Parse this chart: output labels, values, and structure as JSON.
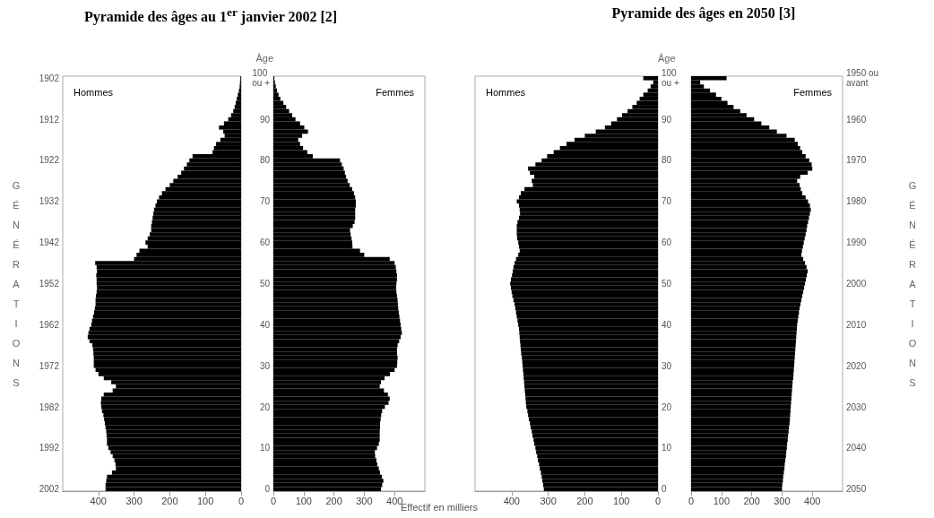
{
  "chart_data": [
    {
      "type": "bar",
      "title": "Pyramide des âges au 1$^{er}$ janvier 2002 [2]",
      "ylabel": "GÉNÉRATIONS",
      "orientation": "horizontal",
      "categories": [
        "1902",
        null,
        null,
        null,
        null,
        null,
        null,
        null,
        null,
        null,
        "1912",
        null,
        null,
        null,
        null,
        null,
        null,
        null,
        null,
        null,
        "1922",
        null,
        null,
        null,
        null,
        null,
        null,
        null,
        null,
        null,
        "1932",
        null,
        null,
        null,
        null,
        null,
        null,
        null,
        null,
        null,
        "1942",
        null,
        null,
        null,
        null,
        null,
        null,
        null,
        null,
        null,
        "1952",
        null,
        null,
        null,
        null,
        null,
        null,
        null,
        null,
        null,
        "1962",
        null,
        null,
        null,
        null,
        null,
        null,
        null,
        null,
        null,
        "1972",
        null,
        null,
        null,
        null,
        null,
        null,
        null,
        null,
        null,
        "1982",
        null,
        null,
        null,
        null,
        null,
        null,
        null,
        null,
        null,
        "1992",
        null,
        null,
        null,
        null,
        null,
        null,
        null,
        null,
        null,
        "2002"
      ],
      "series": [
        {
          "name": "Hommes",
          "color": "#000000",
          "values": [
            2,
            3,
            4,
            6,
            9,
            12,
            15,
            18,
            22,
            28,
            36,
            48,
            62,
            50,
            46,
            58,
            70,
            76,
            80,
            136,
            145,
            152,
            160,
            168,
            178,
            190,
            200,
            212,
            222,
            230,
            236,
            240,
            244,
            246,
            248,
            250,
            252,
            252,
            256,
            262,
            268,
            262,
            285,
            293,
            300,
            409,
            405,
            404,
            406,
            405,
            405,
            404,
            405,
            407,
            408,
            408,
            410,
            412,
            415,
            418,
            420,
            425,
            428,
            430,
            425,
            417,
            415,
            414,
            413,
            413,
            413,
            408,
            400,
            385,
            364,
            351,
            360,
            385,
            392,
            393,
            392,
            390,
            386,
            384,
            382,
            380,
            378,
            377,
            376,
            376,
            372,
            366,
            360,
            355,
            352,
            351,
            362,
            376,
            378,
            380,
            380
          ]
        }
      ],
      "xlim": [
        500,
        0
      ],
      "xticks": [
        400,
        300,
        200,
        100,
        0
      ]
    },
    {
      "type": "bar",
      "ylabel": "Âge",
      "xlabel": "Effectif en milliers",
      "orientation": "horizontal",
      "categories": [
        "100 ou +",
        null,
        null,
        null,
        null,
        null,
        null,
        null,
        null,
        null,
        "90",
        null,
        null,
        null,
        null,
        null,
        null,
        null,
        null,
        null,
        "80",
        null,
        null,
        null,
        null,
        null,
        null,
        null,
        null,
        null,
        "70",
        null,
        null,
        null,
        null,
        null,
        null,
        null,
        null,
        null,
        "60",
        null,
        null,
        null,
        null,
        null,
        null,
        null,
        null,
        null,
        "50",
        null,
        null,
        null,
        null,
        null,
        null,
        null,
        null,
        null,
        "40",
        null,
        null,
        null,
        null,
        null,
        null,
        null,
        null,
        null,
        "30",
        null,
        null,
        null,
        null,
        null,
        null,
        null,
        null,
        null,
        "20",
        null,
        null,
        null,
        null,
        null,
        null,
        null,
        null,
        null,
        "10",
        null,
        null,
        null,
        null,
        null,
        null,
        null,
        null,
        null,
        "0"
      ],
      "series": [
        {
          "name": "Femmes",
          "color": "#000000",
          "values": [
            3,
            5,
            8,
            12,
            17,
            23,
            33,
            42,
            52,
            62,
            73,
            88,
            102,
            114,
            95,
            82,
            88,
            98,
            112,
            130,
            220,
            226,
            232,
            236,
            240,
            245,
            252,
            260,
            266,
            270,
            272,
            272,
            270,
            270,
            270,
            268,
            262,
            253,
            255,
            258,
            260,
            261,
            286,
            300,
            384,
            400,
            404,
            406,
            408,
            408,
            406,
            405,
            406,
            408,
            410,
            411,
            412,
            414,
            416,
            418,
            420,
            422,
            424,
            420,
            415,
            410,
            408,
            408,
            410,
            409,
            408,
            400,
            385,
            367,
            355,
            351,
            365,
            378,
            384,
            380,
            368,
            359,
            356,
            354,
            352,
            352,
            351,
            351,
            351,
            348,
            342,
            335,
            336,
            340,
            343,
            348,
            352,
            358,
            363,
            359,
            355
          ]
        }
      ],
      "xlim": [
        0,
        500
      ],
      "xticks": [
        0,
        100,
        200,
        300,
        400
      ]
    },
    {
      "type": "bar",
      "title": "Pyramide des âges en 2050 [3]",
      "ylabel": "Âge",
      "orientation": "horizontal",
      "categories": [
        "100 ou +",
        null,
        null,
        null,
        null,
        null,
        null,
        null,
        null,
        null,
        "90",
        null,
        null,
        null,
        null,
        null,
        null,
        null,
        null,
        null,
        "80",
        null,
        null,
        null,
        null,
        null,
        null,
        null,
        null,
        null,
        "70",
        null,
        null,
        null,
        null,
        null,
        null,
        null,
        null,
        null,
        "60",
        null,
        null,
        null,
        null,
        null,
        null,
        null,
        null,
        null,
        "50",
        null,
        null,
        null,
        null,
        null,
        null,
        null,
        null,
        null,
        "40",
        null,
        null,
        null,
        null,
        null,
        null,
        null,
        null,
        null,
        "30",
        null,
        null,
        null,
        null,
        null,
        null,
        null,
        null,
        null,
        "20",
        null,
        null,
        null,
        null,
        null,
        null,
        null,
        null,
        null,
        "10",
        null,
        null,
        null,
        null,
        null,
        null,
        null,
        null,
        null,
        "0"
      ],
      "series": [
        {
          "name": "Hommes",
          "color": "#000000",
          "values": [
            40,
            13,
            20,
            28,
            40,
            50,
            58,
            70,
            83,
            98,
            112,
            128,
            145,
            170,
            200,
            228,
            250,
            268,
            285,
            303,
            318,
            335,
            355,
            350,
            338,
            345,
            342,
            365,
            375,
            380,
            386,
            380,
            378,
            377,
            380,
            384,
            386,
            386,
            386,
            385,
            382,
            380,
            378,
            382,
            388,
            392,
            395,
            397,
            399,
            402,
            404,
            402,
            400,
            398,
            395,
            392,
            390,
            388,
            386,
            384,
            382,
            380,
            379,
            378,
            377,
            376,
            375,
            374,
            372,
            371,
            370,
            369,
            368,
            367,
            366,
            365,
            364,
            363,
            362,
            361,
            360,
            357,
            355,
            353,
            350,
            348,
            345,
            343,
            340,
            338,
            335,
            333,
            330,
            328,
            325,
            323,
            320,
            318,
            316,
            314,
            312
          ]
        }
      ],
      "xlim": [
        500,
        0
      ],
      "xticks": [
        400,
        300,
        200,
        100,
        0
      ]
    },
    {
      "type": "bar",
      "ylabel": "GÉNÉRATIONS",
      "orientation": "horizontal",
      "categories": [
        "1950 ou avant",
        null,
        null,
        null,
        null,
        null,
        null,
        null,
        null,
        null,
        "1960",
        null,
        null,
        null,
        null,
        null,
        null,
        null,
        null,
        null,
        "1970",
        null,
        null,
        null,
        null,
        null,
        null,
        null,
        null,
        null,
        "1980",
        null,
        null,
        null,
        null,
        null,
        null,
        null,
        null,
        null,
        "1990",
        null,
        null,
        null,
        null,
        null,
        null,
        null,
        null,
        null,
        "2000",
        null,
        null,
        null,
        null,
        null,
        null,
        null,
        null,
        null,
        "2010",
        null,
        null,
        null,
        null,
        null,
        null,
        null,
        null,
        null,
        "2020",
        null,
        null,
        null,
        null,
        null,
        null,
        null,
        null,
        null,
        "2030",
        null,
        null,
        null,
        null,
        null,
        null,
        null,
        null,
        null,
        "2040",
        null,
        null,
        null,
        null,
        null,
        null,
        null,
        null,
        null,
        "2050"
      ],
      "series": [
        {
          "name": "Femmes",
          "color": "#000000",
          "values": [
            117,
            30,
            42,
            62,
            82,
            100,
            120,
            140,
            162,
            183,
            208,
            232,
            258,
            283,
            315,
            342,
            352,
            360,
            367,
            378,
            390,
            398,
            400,
            385,
            360,
            350,
            358,
            362,
            367,
            378,
            386,
            392,
            395,
            392,
            389,
            386,
            383,
            381,
            378,
            375,
            372,
            369,
            366,
            364,
            370,
            376,
            381,
            385,
            382,
            379,
            376,
            373,
            370,
            367,
            364,
            361,
            358,
            356,
            354,
            352,
            350,
            349,
            348,
            347,
            346,
            345,
            344,
            343,
            342,
            341,
            340,
            339,
            338,
            337,
            335,
            334,
            333,
            332,
            331,
            330,
            329,
            328,
            327,
            326,
            325,
            323,
            322,
            320,
            319,
            317,
            316,
            314,
            313,
            311,
            309,
            308,
            306,
            304,
            303,
            301,
            300
          ]
        }
      ],
      "xlim": [
        0,
        500
      ],
      "xticks": [
        0,
        100,
        200,
        300,
        400
      ]
    }
  ]
}
